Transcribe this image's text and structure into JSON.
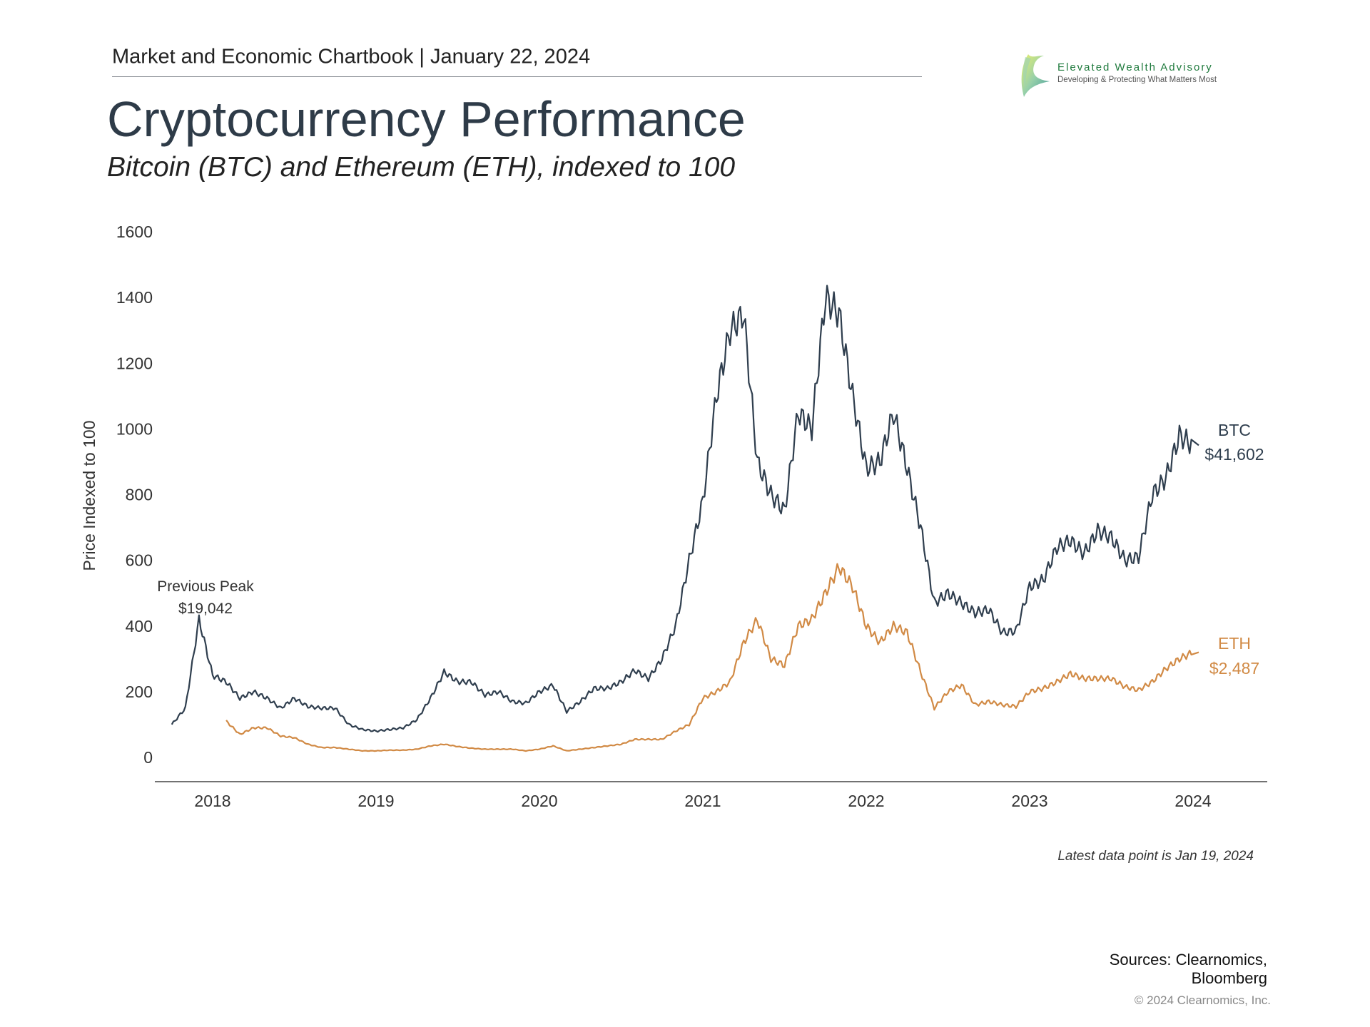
{
  "header": {
    "chartbook": "Market and Economic Chartbook | January 22, 2024",
    "title": "Cryptocurrency Performance",
    "subtitle": "Bitcoin (BTC) and Ethereum (ETH), indexed to 100"
  },
  "logo": {
    "name": "Elevated Wealth Advisory",
    "tagline": "Developing & Protecting What Matters Most"
  },
  "chart_data": {
    "type": "line",
    "title": "Cryptocurrency Performance",
    "subtitle": "Bitcoin (BTC) and Ethereum (ETH), indexed to 100",
    "ylabel": "Price Indexed to 100",
    "xlabel": "",
    "ylim": [
      0,
      1600
    ],
    "yticks": [
      0,
      200,
      400,
      600,
      800,
      1000,
      1200,
      1400,
      1600
    ],
    "xticks": [
      "2018",
      "2019",
      "2020",
      "2021",
      "2022",
      "2023",
      "2024"
    ],
    "grid": false,
    "series": [
      {
        "name": "BTC",
        "end_label": "$41,602",
        "color": "#2f3e4e",
        "x": [
          "2017-10",
          "2017-11",
          "2017-12",
          "2018-01",
          "2018-02",
          "2018-03",
          "2018-04",
          "2018-05",
          "2018-06",
          "2018-07",
          "2018-08",
          "2018-09",
          "2018-10",
          "2018-11",
          "2018-12",
          "2019-01",
          "2019-02",
          "2019-03",
          "2019-04",
          "2019-05",
          "2019-06",
          "2019-07",
          "2019-08",
          "2019-09",
          "2019-10",
          "2019-11",
          "2019-12",
          "2020-01",
          "2020-02",
          "2020-03",
          "2020-04",
          "2020-05",
          "2020-06",
          "2020-07",
          "2020-08",
          "2020-09",
          "2020-10",
          "2020-11",
          "2020-12",
          "2021-01",
          "2021-02",
          "2021-03",
          "2021-04",
          "2021-05",
          "2021-06",
          "2021-07",
          "2021-08",
          "2021-09",
          "2021-10",
          "2021-11",
          "2021-12",
          "2022-01",
          "2022-02",
          "2022-03",
          "2022-04",
          "2022-05",
          "2022-06",
          "2022-07",
          "2022-08",
          "2022-09",
          "2022-10",
          "2022-11",
          "2022-12",
          "2023-01",
          "2023-02",
          "2023-03",
          "2023-04",
          "2023-05",
          "2023-06",
          "2023-07",
          "2023-08",
          "2023-09",
          "2023-10",
          "2023-11",
          "2023-12",
          "2024-01"
        ],
        "values": [
          100,
          150,
          420,
          250,
          230,
          180,
          200,
          180,
          150,
          180,
          155,
          150,
          150,
          100,
          85,
          80,
          85,
          90,
          115,
          180,
          260,
          230,
          230,
          190,
          200,
          170,
          165,
          200,
          220,
          140,
          170,
          210,
          210,
          230,
          265,
          240,
          300,
          400,
          600,
          780,
          1100,
          1300,
          1350,
          900,
          800,
          750,
          1050,
          1000,
          1400,
          1350,
          1100,
          880,
          900,
          1050,
          880,
          700,
          470,
          500,
          470,
          440,
          450,
          380,
          385,
          520,
          540,
          640,
          660,
          620,
          690,
          670,
          600,
          610,
          800,
          850,
          980,
          950
        ]
      },
      {
        "name": "ETH",
        "end_label": "$2,487",
        "color": "#d18a45",
        "x": [
          "2018-02",
          "2018-03",
          "2018-04",
          "2018-05",
          "2018-06",
          "2018-07",
          "2018-08",
          "2018-09",
          "2018-10",
          "2018-11",
          "2018-12",
          "2019-01",
          "2019-02",
          "2019-03",
          "2019-04",
          "2019-05",
          "2019-06",
          "2019-07",
          "2019-08",
          "2019-09",
          "2019-10",
          "2019-11",
          "2019-12",
          "2020-01",
          "2020-02",
          "2020-03",
          "2020-04",
          "2020-05",
          "2020-06",
          "2020-07",
          "2020-08",
          "2020-09",
          "2020-10",
          "2020-11",
          "2020-12",
          "2021-01",
          "2021-02",
          "2021-03",
          "2021-04",
          "2021-05",
          "2021-06",
          "2021-07",
          "2021-08",
          "2021-09",
          "2021-10",
          "2021-11",
          "2021-12",
          "2022-01",
          "2022-02",
          "2022-03",
          "2022-04",
          "2022-05",
          "2022-06",
          "2022-07",
          "2022-08",
          "2022-09",
          "2022-10",
          "2022-11",
          "2022-12",
          "2023-01",
          "2023-02",
          "2023-03",
          "2023-04",
          "2023-05",
          "2023-06",
          "2023-07",
          "2023-08",
          "2023-09",
          "2023-10",
          "2023-11",
          "2023-12",
          "2024-01"
        ],
        "values": [
          110,
          70,
          90,
          90,
          65,
          60,
          40,
          30,
          30,
          25,
          20,
          20,
          22,
          22,
          25,
          35,
          40,
          33,
          28,
          25,
          25,
          25,
          20,
          25,
          35,
          20,
          25,
          30,
          35,
          40,
          55,
          55,
          55,
          80,
          100,
          180,
          200,
          230,
          350,
          420,
          300,
          280,
          400,
          420,
          500,
          580,
          520,
          400,
          350,
          400,
          380,
          260,
          150,
          200,
          220,
          160,
          170,
          160,
          155,
          200,
          210,
          230,
          255,
          240,
          240,
          240,
          215,
          205,
          230,
          270,
          300,
          320
        ]
      }
    ],
    "annotations": [
      {
        "text": "Previous Peak",
        "value": "$19,042",
        "at": "2017-12"
      }
    ],
    "footnote": "Latest data point is Jan 19, 2024"
  },
  "footer": {
    "sources_line1": "Sources: Clearnomics,",
    "sources_line2": "Bloomberg",
    "copyright": "© 2024 Clearnomics, Inc."
  }
}
